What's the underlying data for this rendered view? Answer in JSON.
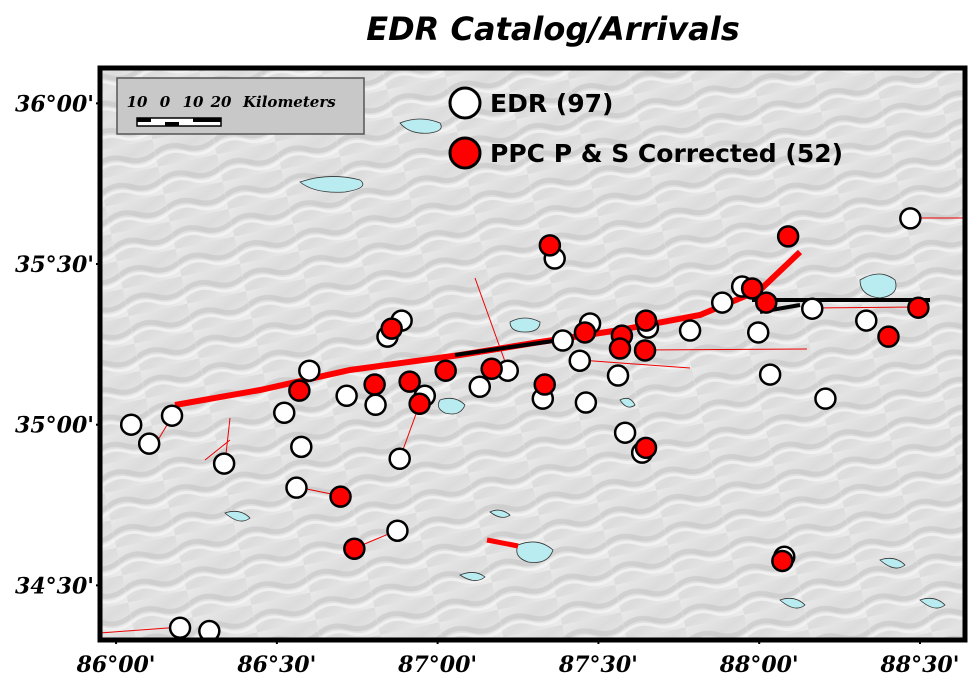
{
  "chart_data": {
    "type": "scatter",
    "title": "EDR Catalog/Arrivals",
    "xlim": [
      85.95,
      88.64
    ],
    "ylim": [
      34.33,
      36.11
    ],
    "xticks": [
      {
        "value": 86,
        "label": "86°00'"
      },
      {
        "value": 86.5,
        "label": "86°30'"
      },
      {
        "value": 87,
        "label": "87°00'"
      },
      {
        "value": 87.5,
        "label": "87°30'"
      },
      {
        "value": 88,
        "label": "88°00'"
      },
      {
        "value": 88.5,
        "label": "88°30'"
      }
    ],
    "yticks": [
      {
        "value": 34.5,
        "label": "34°30'"
      },
      {
        "value": 35,
        "label": "35°00'"
      },
      {
        "value": 35.5,
        "label": "35°30'"
      },
      {
        "value": 36,
        "label": "36°00'"
      }
    ],
    "scale_bar_labels": [
      "10",
      "0",
      "10",
      "20"
    ],
    "scale_bar_unit": "Kilometers",
    "series": [
      {
        "name": "EDR (97)",
        "color": "#ffffff",
        "x": [
          88.47,
          87.947,
          87.885,
          88.165,
          87.997,
          87.785,
          87.654,
          87.474,
          87.389,
          87.442,
          87.561,
          87.461,
          87.218,
          87.131,
          87.327,
          86.888,
          86.844,
          86.807,
          86.717,
          86.601,
          86.523,
          86.576,
          86.561,
          86.882,
          86.875,
          86.96,
          86.047,
          86.103,
          86.174,
          86.336,
          86.199,
          86.29,
          87.364,
          88.206,
          88.034,
          87.636,
          87.583,
          88.078,
          88.333
        ],
        "y": [
          35.642,
          35.43,
          35.38,
          35.361,
          35.287,
          35.293,
          35.302,
          35.315,
          35.262,
          35.199,
          35.153,
          35.069,
          35.168,
          35.118,
          35.081,
          35.324,
          35.274,
          35.062,
          35.09,
          35.168,
          35.037,
          34.931,
          34.804,
          34.894,
          34.67,
          35.09,
          35.0,
          34.941,
          35.028,
          34.879,
          34.368,
          34.358,
          35.517,
          35.081,
          35.156,
          34.913,
          34.975,
          34.589,
          35.324
        ]
      },
      {
        "name": "PPC P & S Corrected (52)",
        "color": "#ff0000",
        "x": [
          87.349,
          88.09,
          87.978,
          88.022,
          88.495,
          88.402,
          87.648,
          87.573,
          87.567,
          87.645,
          87.458,
          87.333,
          87.168,
          87.025,
          86.913,
          86.944,
          86.804,
          86.857,
          86.57,
          86.698,
          86.741,
          87.648,
          88.072
        ],
        "y": [
          35.558,
          35.586,
          35.424,
          35.38,
          35.364,
          35.274,
          35.324,
          35.277,
          35.237,
          35.231,
          35.287,
          35.125,
          35.174,
          35.168,
          35.134,
          35.065,
          35.125,
          35.299,
          35.106,
          34.776,
          34.614,
          34.928,
          34.576
        ]
      }
    ]
  }
}
